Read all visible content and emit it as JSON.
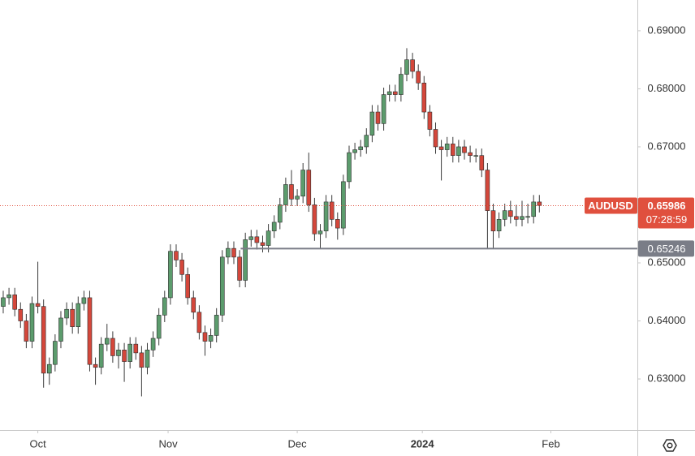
{
  "chart_data": {
    "type": "candlestick",
    "ylim": [
      0.6212,
      0.6953
    ],
    "yticks": [
      {
        "value": 0.63,
        "label": "0.63000"
      },
      {
        "value": 0.64,
        "label": "0.64000"
      },
      {
        "value": 0.65,
        "label": "0.65000"
      },
      {
        "value": 0.67,
        "label": "0.67000"
      },
      {
        "value": 0.68,
        "label": "0.68000"
      },
      {
        "value": 0.69,
        "label": "0.69000"
      }
    ],
    "xlim": [
      -0.56,
      110
    ],
    "xticks": [
      {
        "value": 6,
        "label": "Oct"
      },
      {
        "value": 28.6,
        "label": "Nov"
      },
      {
        "value": 51,
        "label": "Dec"
      },
      {
        "value": 72.7,
        "label": "2024"
      },
      {
        "value": 95,
        "label": "Feb"
      }
    ],
    "up_color": "#5c9c6d",
    "down_color": "#d4473b",
    "open": [
      0.6425,
      0.644,
      0.6445,
      0.642,
      0.64,
      0.6365,
      0.643,
      0.6425,
      0.631,
      0.6325,
      0.6365,
      0.6405,
      0.642,
      0.639,
      0.643,
      0.644,
      0.6325,
      0.632,
      0.636,
      0.637,
      0.634,
      0.635,
      0.633,
      0.636,
      0.6345,
      0.632,
      0.635,
      0.637,
      0.641,
      0.644,
      0.652,
      0.6505,
      0.648,
      0.644,
      0.6415,
      0.638,
      0.6365,
      0.6375,
      0.641,
      0.651,
      0.6525,
      0.651,
      0.647,
      0.654,
      0.6545,
      0.6535,
      0.653,
      0.6555,
      0.657,
      0.66,
      0.6635,
      0.661,
      0.6615,
      0.666,
      0.66,
      0.655,
      0.6555,
      0.6605,
      0.6575,
      0.656,
      0.664,
      0.669,
      0.6695,
      0.67,
      0.672,
      0.676,
      0.674,
      0.679,
      0.6795,
      0.679,
      0.6825,
      0.685,
      0.683,
      0.681,
      0.676,
      0.673,
      0.67,
      0.6695,
      0.6705,
      0.6685,
      0.67,
      0.669,
      0.6685,
      0.6685,
      0.666,
      0.659,
      0.6555,
      0.6575,
      0.659,
      0.658,
      0.6575,
      0.658,
      0.658,
      0.6605
    ],
    "high": [
      0.6452,
      0.6457,
      0.6457,
      0.6432,
      0.6412,
      0.6442,
      0.6502,
      0.6437,
      0.6337,
      0.6377,
      0.6417,
      0.6432,
      0.6432,
      0.6442,
      0.6452,
      0.6452,
      0.6337,
      0.6372,
      0.6395,
      0.6382,
      0.6362,
      0.6362,
      0.6372,
      0.6372,
      0.6357,
      0.6362,
      0.6382,
      0.6422,
      0.6452,
      0.6532,
      0.6532,
      0.6517,
      0.6492,
      0.6452,
      0.6427,
      0.6392,
      0.6387,
      0.6422,
      0.6522,
      0.6537,
      0.6537,
      0.6522,
      0.6552,
      0.6557,
      0.6557,
      0.6547,
      0.6567,
      0.6582,
      0.6612,
      0.6647,
      0.666,
      0.6627,
      0.6672,
      0.669,
      0.6612,
      0.6567,
      0.6617,
      0.6617,
      0.6587,
      0.6652,
      0.6702,
      0.6707,
      0.6712,
      0.6732,
      0.6772,
      0.6772,
      0.6802,
      0.6807,
      0.6807,
      0.6837,
      0.687,
      0.6862,
      0.6842,
      0.6822,
      0.6772,
      0.6742,
      0.6712,
      0.6717,
      0.6717,
      0.6712,
      0.6712,
      0.6702,
      0.6697,
      0.6697,
      0.6672,
      0.6602,
      0.6587,
      0.6602,
      0.6607,
      0.66,
      0.6607,
      0.6602,
      0.6617,
      0.6617
    ],
    "low": [
      0.6413,
      0.6428,
      0.6408,
      0.6388,
      0.6353,
      0.6353,
      0.6413,
      0.6285,
      0.629,
      0.6313,
      0.6353,
      0.6393,
      0.6378,
      0.6378,
      0.6418,
      0.6313,
      0.629,
      0.6308,
      0.6348,
      0.6328,
      0.6318,
      0.6295,
      0.6318,
      0.6333,
      0.627,
      0.6308,
      0.6338,
      0.6358,
      0.6398,
      0.6428,
      0.6493,
      0.6468,
      0.6428,
      0.6403,
      0.6368,
      0.634,
      0.6353,
      0.6363,
      0.6398,
      0.6498,
      0.6498,
      0.6458,
      0.6458,
      0.6528,
      0.6523,
      0.6518,
      0.6518,
      0.6543,
      0.6558,
      0.6588,
      0.6598,
      0.6598,
      0.6603,
      0.6588,
      0.6538,
      0.6524,
      0.6543,
      0.6563,
      0.654,
      0.6548,
      0.6628,
      0.6678,
      0.6683,
      0.6688,
      0.6708,
      0.6728,
      0.6728,
      0.6778,
      0.6778,
      0.6778,
      0.6813,
      0.6818,
      0.6798,
      0.6748,
      0.6718,
      0.6688,
      0.6642,
      0.6683,
      0.6673,
      0.6673,
      0.6678,
      0.6673,
      0.6673,
      0.6648,
      0.6525,
      0.6525,
      0.6543,
      0.6563,
      0.6568,
      0.6563,
      0.6563,
      0.6568,
      0.6568,
      0.6587
    ],
    "close": [
      0.644,
      0.6445,
      0.642,
      0.64,
      0.6365,
      0.643,
      0.6425,
      0.631,
      0.6325,
      0.6365,
      0.6405,
      0.642,
      0.639,
      0.643,
      0.644,
      0.6325,
      0.632,
      0.636,
      0.637,
      0.634,
      0.635,
      0.633,
      0.636,
      0.6345,
      0.632,
      0.635,
      0.637,
      0.641,
      0.644,
      0.652,
      0.6505,
      0.648,
      0.644,
      0.6415,
      0.638,
      0.6365,
      0.6375,
      0.641,
      0.651,
      0.6525,
      0.651,
      0.647,
      0.654,
      0.6545,
      0.6535,
      0.653,
      0.6555,
      0.657,
      0.66,
      0.6635,
      0.661,
      0.6615,
      0.666,
      0.66,
      0.655,
      0.6555,
      0.6605,
      0.6575,
      0.656,
      0.664,
      0.669,
      0.6695,
      0.67,
      0.672,
      0.676,
      0.674,
      0.679,
      0.6795,
      0.679,
      0.6825,
      0.685,
      0.683,
      0.681,
      0.676,
      0.673,
      0.67,
      0.6695,
      0.6705,
      0.6685,
      0.67,
      0.669,
      0.6685,
      0.6685,
      0.666,
      0.659,
      0.6555,
      0.6575,
      0.659,
      0.658,
      0.6575,
      0.658,
      0.658,
      0.6605,
      0.6599
    ],
    "last_price": {
      "value": 0.65986,
      "label": "0.65986",
      "symbol": "AUDUSD",
      "countdown": "07:28:59",
      "color": "#e0503e"
    },
    "horizontal_line": {
      "value": 0.65246,
      "label": "0.65246",
      "color": "#7a7d87"
    }
  }
}
